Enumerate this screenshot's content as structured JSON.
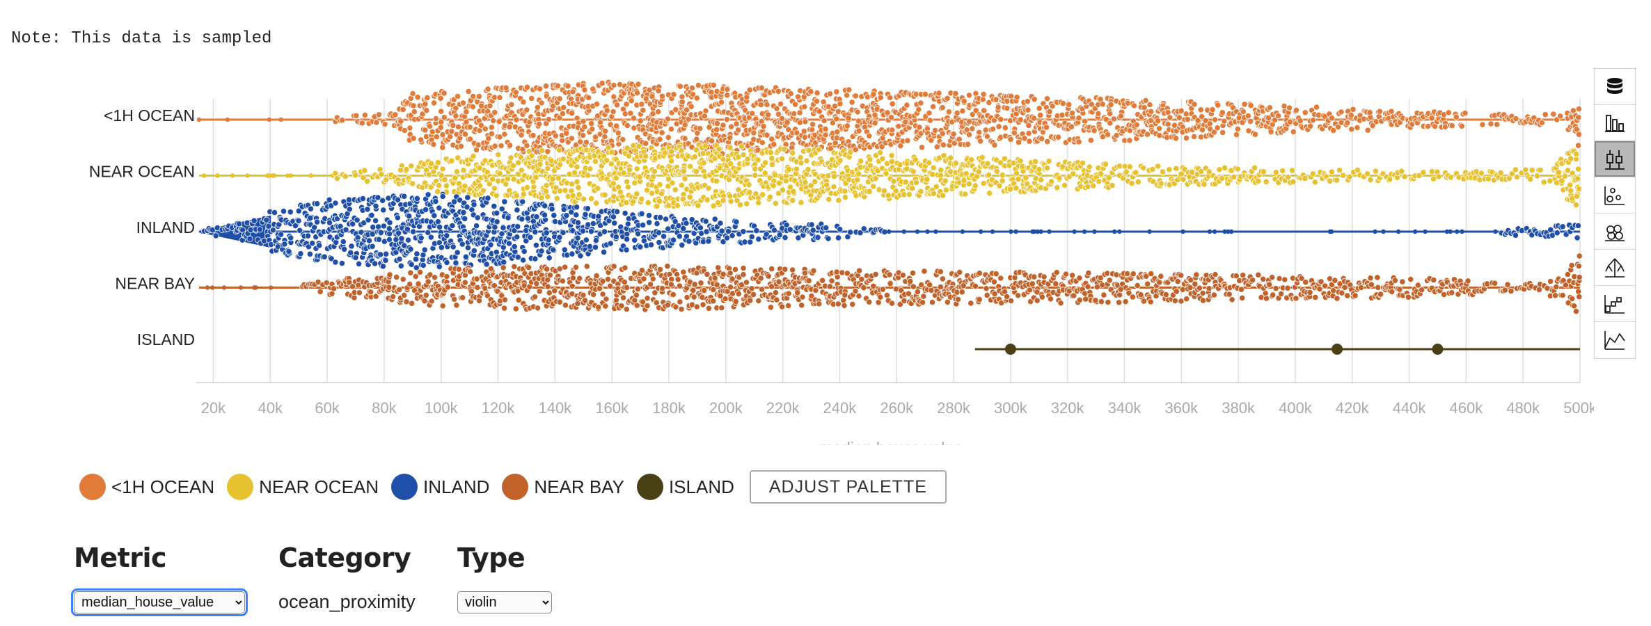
{
  "note": "Note: This data is sampled",
  "chart_data": {
    "type": "violin",
    "xlabel": "median  house  value",
    "xlim": [
      15000,
      500000
    ],
    "x_ticks": [
      20000,
      40000,
      60000,
      80000,
      100000,
      120000,
      140000,
      160000,
      180000,
      200000,
      220000,
      240000,
      260000,
      280000,
      300000,
      320000,
      340000,
      360000,
      380000,
      400000,
      420000,
      440000,
      460000,
      480000,
      500000
    ],
    "x_tick_labels": [
      "20k",
      "40k",
      "60k",
      "80k",
      "100k",
      "120k",
      "140k",
      "160k",
      "180k",
      "200k",
      "220k",
      "240k",
      "260k",
      "280k",
      "300k",
      "320k",
      "340k",
      "360k",
      "380k",
      "400k",
      "420k",
      "440k",
      "460k",
      "480k",
      "500k"
    ],
    "categories": [
      "<1H OCEAN",
      "NEAR OCEAN",
      "INLAND",
      "NEAR BAY",
      "ISLAND"
    ],
    "series": [
      {
        "name": "<1H OCEAN",
        "color": "#e07b39",
        "min": 15000,
        "max": 500000,
        "density_x": [
          15000,
          40000,
          60000,
          80000,
          90000,
          120000,
          160000,
          200000,
          240000,
          280000,
          320000,
          360000,
          400000,
          440000,
          480000,
          495000,
          500000
        ],
        "density_h": [
          0.02,
          0.03,
          0.06,
          0.15,
          0.7,
          0.85,
          1.0,
          0.92,
          0.82,
          0.72,
          0.62,
          0.5,
          0.35,
          0.25,
          0.12,
          0.2,
          1.0
        ]
      },
      {
        "name": "NEAR OCEAN",
        "color": "#e6c130",
        "min": 15000,
        "max": 500000,
        "density_x": [
          15000,
          60000,
          80000,
          100000,
          140000,
          180000,
          220000,
          260000,
          300000,
          340000,
          380000,
          420000,
          460000,
          490000,
          500000
        ],
        "density_h": [
          0.01,
          0.05,
          0.2,
          0.45,
          0.7,
          0.85,
          0.75,
          0.6,
          0.45,
          0.3,
          0.22,
          0.15,
          0.1,
          0.2,
          1.0
        ]
      },
      {
        "name": "INLAND",
        "color": "#1f4fa8",
        "min": 15000,
        "max": 500000,
        "density_x": [
          15000,
          35000,
          40000,
          60000,
          80000,
          100000,
          120000,
          140000,
          160000,
          180000,
          200000,
          220000,
          240000,
          250000,
          260000,
          300000,
          340000,
          380000,
          420000,
          460000,
          500000
        ],
        "density_h": [
          0.05,
          0.3,
          0.55,
          0.85,
          0.95,
          1.0,
          0.88,
          0.72,
          0.55,
          0.42,
          0.32,
          0.25,
          0.18,
          0.12,
          0.05,
          0.04,
          0.03,
          0.02,
          0.02,
          0.02,
          0.2
        ]
      },
      {
        "name": "NEAR BAY",
        "color": "#c0622a",
        "min": 15000,
        "max": 500000,
        "density_x": [
          15000,
          50000,
          60000,
          80000,
          100000,
          140000,
          180000,
          220000,
          260000,
          300000,
          340000,
          380000,
          420000,
          460000,
          480000,
          495000,
          500000
        ],
        "density_h": [
          0.02,
          0.05,
          0.2,
          0.35,
          0.5,
          0.6,
          0.58,
          0.52,
          0.45,
          0.42,
          0.4,
          0.35,
          0.3,
          0.22,
          0.08,
          0.3,
          1.0
        ]
      },
      {
        "name": "ISLAND",
        "color": "#4a4015",
        "points": [
          300000,
          414700,
          450000
        ],
        "min": 287500,
        "max": 500000
      }
    ],
    "grid": true,
    "legend_position": "bottom"
  },
  "legend": {
    "items": [
      {
        "label": "<1H OCEAN",
        "color": "#e07b39"
      },
      {
        "label": "NEAR OCEAN",
        "color": "#e6c130"
      },
      {
        "label": "INLAND",
        "color": "#1f4fa8"
      },
      {
        "label": "NEAR BAY",
        "color": "#c0622a"
      },
      {
        "label": "ISLAND",
        "color": "#4a4015"
      }
    ],
    "adjust_palette": "ADJUST PALETTE"
  },
  "toolbar": {
    "icons": [
      "database-icon",
      "bar-chart-icon",
      "box-plot-icon",
      "scatter-icon",
      "bubble-icon",
      "tree-icon",
      "waterfall-icon",
      "area-chart-icon"
    ],
    "active": "box-plot-icon"
  },
  "controls": {
    "metric": {
      "label": "Metric",
      "value": "median_house_value"
    },
    "category": {
      "label": "Category",
      "value": "ocean_proximity"
    },
    "type": {
      "label": "Type",
      "value": "violin"
    }
  }
}
